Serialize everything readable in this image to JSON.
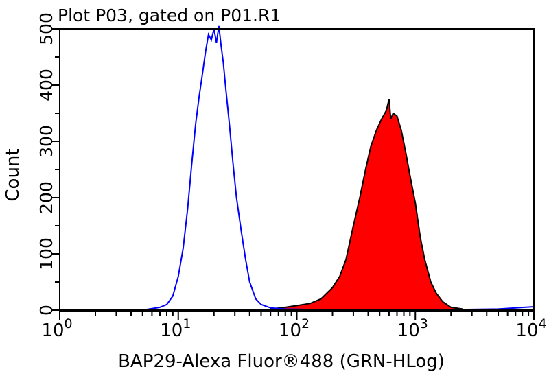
{
  "chart_data": {
    "type": "area",
    "title": "Plot P03, gated on P01.R1",
    "xlabel": "BAP29-Alexa Fluor®488 (GRN-HLog)",
    "ylabel": "Count",
    "xscale": "log",
    "xlim": [
      1,
      10000
    ],
    "ylim": [
      0,
      500
    ],
    "xticks": [
      {
        "base": "10",
        "exp": "0",
        "value": 1
      },
      {
        "base": "10",
        "exp": "1",
        "value": 10
      },
      {
        "base": "10",
        "exp": "2",
        "value": 100
      },
      {
        "base": "10",
        "exp": "3",
        "value": 1000
      },
      {
        "base": "10",
        "exp": "4",
        "value": 10000
      }
    ],
    "yticks": [
      "0",
      "100",
      "200",
      "300",
      "400",
      "500"
    ],
    "grid": false,
    "series": [
      {
        "style": "outline",
        "color": "#0000ff",
        "x": [
          5,
          7,
          8,
          9,
          10,
          11,
          12,
          13,
          14,
          15,
          16,
          17,
          18,
          19,
          20,
          21,
          22,
          23,
          24,
          25,
          27,
          29,
          31,
          34,
          37,
          40,
          45,
          50,
          60,
          80,
          150,
          1000,
          5000,
          9800
        ],
        "y": [
          0,
          5,
          10,
          25,
          60,
          110,
          180,
          260,
          330,
          380,
          420,
          460,
          490,
          480,
          500,
          475,
          505,
          470,
          440,
          400,
          330,
          260,
          200,
          140,
          90,
          50,
          20,
          10,
          4,
          2,
          1,
          0,
          2,
          6
        ]
      },
      {
        "style": "filled",
        "color": "#ff0000",
        "x": [
          60,
          80,
          100,
          130,
          160,
          200,
          230,
          260,
          300,
          340,
          380,
          420,
          470,
          520,
          570,
          600,
          620,
          650,
          700,
          760,
          830,
          900,
          1000,
          1100,
          1200,
          1350,
          1500,
          1700,
          2000,
          2500
        ],
        "y": [
          2,
          5,
          8,
          12,
          20,
          40,
          60,
          90,
          150,
          200,
          250,
          290,
          320,
          340,
          355,
          375,
          340,
          350,
          345,
          320,
          280,
          240,
          190,
          130,
          90,
          50,
          30,
          15,
          5,
          2
        ]
      }
    ]
  }
}
